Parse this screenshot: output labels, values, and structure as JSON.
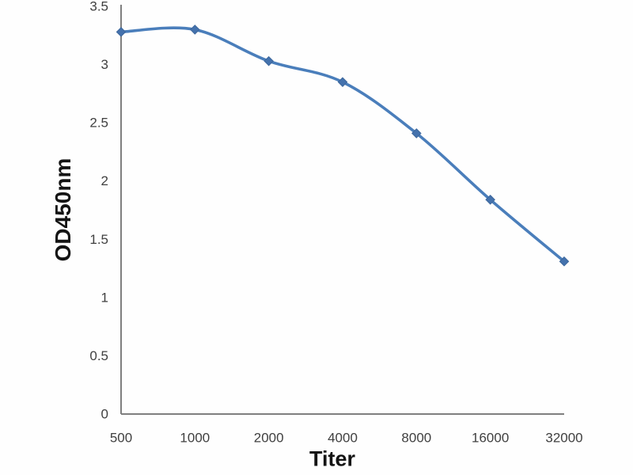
{
  "chart_data": {
    "type": "line",
    "title": "",
    "categories": [
      "500",
      "1000",
      "2000",
      "4000",
      "8000",
      "16000",
      "32000"
    ],
    "x": [
      500,
      1000,
      2000,
      4000,
      8000,
      16000,
      32000
    ],
    "series": [
      {
        "name": "OD450nm",
        "values": [
          3.28,
          3.3,
          3.03,
          2.85,
          2.41,
          1.84,
          1.31
        ]
      }
    ],
    "xlabel": "Titer",
    "ylabel": "OD450nm",
    "ylim": [
      0,
      3.5
    ],
    "ytick_step": 0.5,
    "yticks": [
      "0",
      "0.5",
      "1",
      "1.5",
      "2",
      "2.5",
      "3",
      "3.5"
    ],
    "xscale": "log2-categorical",
    "grid": false,
    "legend_position": "none",
    "marker": "diamond",
    "line_smoothing": true,
    "colors": {
      "line": "#4a7ebb",
      "marker_fill": "#4472ad",
      "marker_edge": "#3d679c",
      "axis_line": "#7f7f7f",
      "tick_label": "#404040",
      "axis_title": "#141414",
      "background": "#fefefe"
    }
  }
}
